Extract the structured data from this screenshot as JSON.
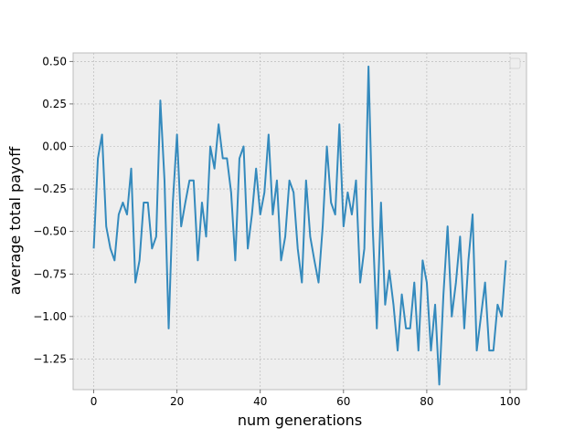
{
  "chart_data": {
    "type": "line",
    "title": "",
    "xlabel": "num generations",
    "ylabel": "average total payoff",
    "xlim": [
      -4.95,
      103.95
    ],
    "ylim": [
      -1.43,
      0.55
    ],
    "grid": true,
    "legend": "top-right (empty)",
    "x_ticks": [
      0,
      20,
      40,
      60,
      80,
      100
    ],
    "y_ticks": [
      0.5,
      0.25,
      0.0,
      -0.25,
      -0.5,
      -0.75,
      -1.0,
      -1.25
    ],
    "x_tick_labels": [
      "0",
      "20",
      "40",
      "60",
      "80",
      "100"
    ],
    "y_tick_labels": [
      "0.50",
      "0.25",
      "0.00",
      "−0.25",
      "−0.50",
      "−0.75",
      "−1.00",
      "−1.25"
    ],
    "colors": {
      "line": "#348abd",
      "plot_bg": "#eeeeee",
      "grid": "#b2b2b2",
      "spine": "#bcbcbc"
    },
    "series": [
      {
        "values": [
          -0.6,
          -0.07,
          0.07,
          -0.47,
          -0.6,
          -0.67,
          -0.4,
          -0.33,
          -0.4,
          -0.13,
          -0.8,
          -0.67,
          -0.33,
          -0.33,
          -0.6,
          -0.53,
          0.27,
          -0.2,
          -1.07,
          -0.33,
          0.07,
          -0.47,
          -0.33,
          -0.2,
          -0.2,
          -0.67,
          -0.33,
          -0.53,
          0.0,
          -0.13,
          0.13,
          -0.07,
          -0.07,
          -0.27,
          -0.67,
          -0.07,
          0.0,
          -0.6,
          -0.4,
          -0.13,
          -0.4,
          -0.27,
          0.07,
          -0.4,
          -0.2,
          -0.67,
          -0.53,
          -0.2,
          -0.27,
          -0.6,
          -0.8,
          -0.2,
          -0.53,
          -0.67,
          -0.8,
          -0.47,
          0.0,
          -0.33,
          -0.4,
          0.13,
          -0.47,
          -0.27,
          -0.4,
          -0.2,
          -0.8,
          -0.6,
          0.47,
          -0.47,
          -1.07,
          -0.33,
          -0.93,
          -0.73,
          -0.93,
          -1.2,
          -0.87,
          -1.07,
          -1.07,
          -0.8,
          -1.2,
          -0.67,
          -0.8,
          -1.2,
          -0.93,
          -1.4,
          -0.87,
          -0.47,
          -1.0,
          -0.8,
          -0.53,
          -1.07,
          -0.67,
          -0.4,
          -1.2,
          -1.0,
          -0.8,
          -1.2,
          -1.2,
          -0.93,
          -1.0,
          -0.67
        ]
      }
    ]
  }
}
